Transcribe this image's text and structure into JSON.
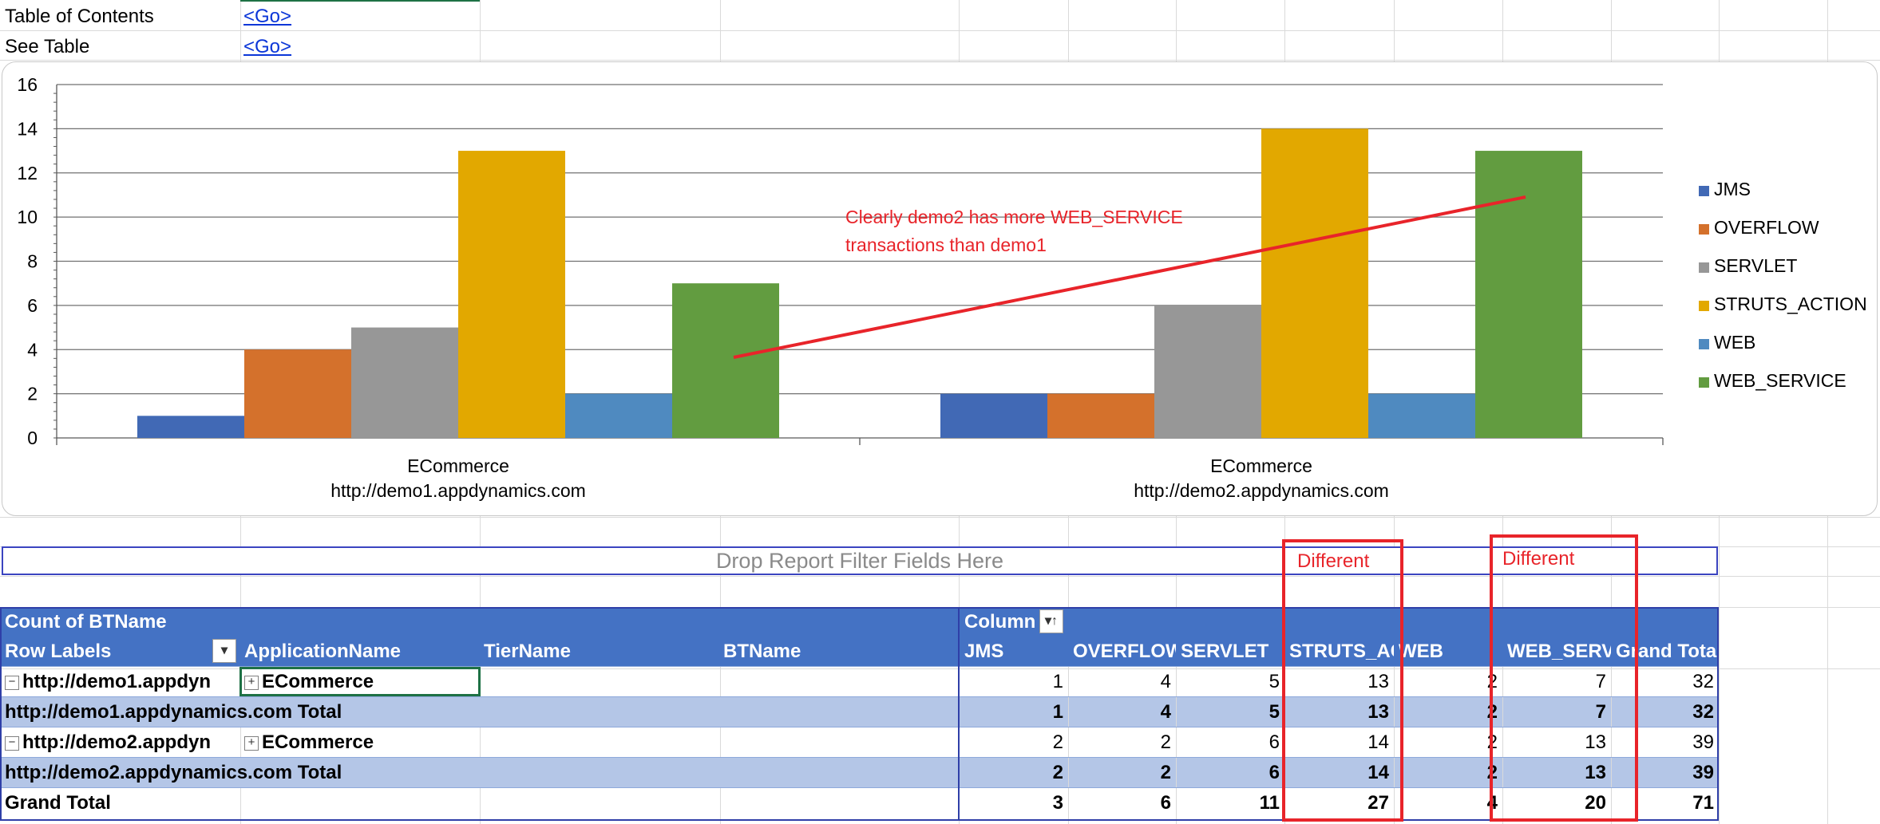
{
  "top_rows": [
    {
      "label": "Table of Contents",
      "link": "<Go>"
    },
    {
      "label": "See Table",
      "link": "<Go>"
    }
  ],
  "chart_data": {
    "type": "bar",
    "categories": [
      [
        "ECommerce",
        "http://demo1.appdynamics.com"
      ],
      [
        "ECommerce",
        "http://demo2.appdynamics.com"
      ]
    ],
    "series": [
      {
        "name": "JMS",
        "values": [
          1,
          2
        ],
        "color": "#4169b5"
      },
      {
        "name": "OVERFLOW",
        "values": [
          4,
          2
        ],
        "color": "#d4712c"
      },
      {
        "name": "SERVLET",
        "values": [
          5,
          6
        ],
        "color": "#979797"
      },
      {
        "name": "STRUTS_ACTION",
        "values": [
          13,
          14
        ],
        "color": "#e2a800"
      },
      {
        "name": "WEB",
        "values": [
          2,
          2
        ],
        "color": "#4f8ac0"
      },
      {
        "name": "WEB_SERVICE",
        "values": [
          7,
          13
        ],
        "color": "#629c40"
      }
    ],
    "ylim": [
      0,
      16
    ],
    "yticks": [
      0,
      2,
      4,
      6,
      8,
      10,
      12,
      14,
      16
    ],
    "grid": true,
    "legend": "right",
    "annotation": [
      "Clearly demo2 has more WEB_SERVICE",
      "transactions than demo1"
    ],
    "annotation_color": "#e8242a"
  },
  "filter_zone": {
    "text": "Drop Report Filter Fields Here"
  },
  "pivot": {
    "title": "Count of BTName",
    "column_header": "Column",
    "row_labels": "Row Labels",
    "headers": [
      "ApplicationName",
      "TierName",
      "BTName"
    ],
    "columns": [
      "JMS",
      "OVERFLOW",
      "SERVLET",
      "STRUTS_AC",
      "WEB",
      "WEB_SERV",
      "Grand Tota"
    ],
    "rows": [
      {
        "label": "http://demo1.appdyn",
        "app": "ECommerce",
        "values": [
          "1",
          "4",
          "5",
          "13",
          "2",
          "7",
          "32"
        ]
      },
      {
        "label": "http://demo1.appdynamics.com Total",
        "values": [
          "1",
          "4",
          "5",
          "13",
          "2",
          "7",
          "32"
        ]
      },
      {
        "label": "http://demo2.appdyn",
        "app": "ECommerce",
        "values": [
          "2",
          "2",
          "6",
          "14",
          "2",
          "13",
          "39"
        ]
      },
      {
        "label": "http://demo2.appdynamics.com Total",
        "values": [
          "2",
          "2",
          "6",
          "14",
          "2",
          "13",
          "39"
        ]
      },
      {
        "label": "Grand Total",
        "values": [
          "3",
          "6",
          "11",
          "27",
          "4",
          "20",
          "71"
        ]
      }
    ],
    "callout": "Different",
    "callout_color": "#e8242a",
    "header_color": "#4472c4",
    "subtotal_color": "#b4c6e7"
  }
}
